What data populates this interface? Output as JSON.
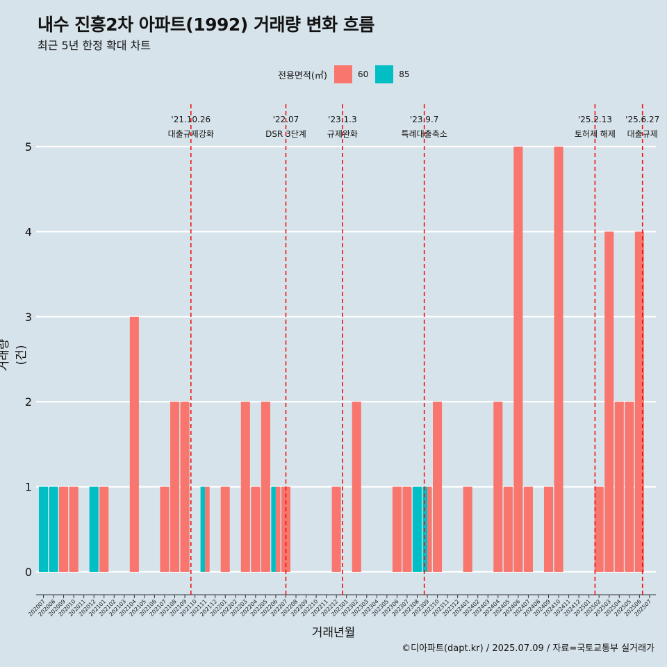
{
  "header": {
    "title": "내수 진흥2차 아파트(1992) 거래량 변화 흐름",
    "subtitle": "최근 5년 한정 확대 차트"
  },
  "legend": {
    "title": "전용면적(㎡)",
    "items": [
      {
        "label": "60",
        "color": "#f8766d"
      },
      {
        "label": "85",
        "color": "#00bfc4"
      }
    ]
  },
  "caption": "©디아파트(dapt.kr) / 2025.07.09 / 자료=국토교통부 실거래가",
  "chart_data": {
    "type": "bar",
    "stacked": false,
    "dodge": true,
    "xlabel": "거래년월",
    "ylabel": "거래량(건)",
    "ylim": [
      0,
      5
    ],
    "yticks": [
      0,
      1,
      2,
      3,
      4,
      5
    ],
    "grid": true,
    "legend_position": "top",
    "categories": [
      "202007",
      "202008",
      "202009",
      "202010",
      "202011",
      "202012",
      "202101",
      "202102",
      "202103",
      "202104",
      "202105",
      "202106",
      "202107",
      "202108",
      "202109",
      "202110",
      "202111",
      "202112",
      "202201",
      "202202",
      "202203",
      "202204",
      "202205",
      "202206",
      "202207",
      "202208",
      "202209",
      "202210",
      "202211",
      "202212",
      "202301",
      "202302",
      "202303",
      "202304",
      "202305",
      "202306",
      "202307",
      "202308",
      "202309",
      "202310",
      "202311",
      "202312",
      "202401",
      "202402",
      "202403",
      "202404",
      "202405",
      "202406",
      "202407",
      "202408",
      "202409",
      "202410",
      "202411",
      "202412",
      "202501",
      "202502",
      "202503",
      "202504",
      "202505",
      "202506",
      "202507"
    ],
    "series": [
      {
        "name": "60",
        "color": "#f8766d",
        "values": [
          0,
          0,
          1,
          1,
          0,
          0,
          1,
          0,
          0,
          3,
          0,
          0,
          1,
          2,
          2,
          0,
          1,
          0,
          1,
          0,
          2,
          1,
          2,
          1,
          1,
          0,
          0,
          0,
          0,
          1,
          0,
          2,
          0,
          0,
          0,
          1,
          1,
          0,
          1,
          2,
          0,
          0,
          1,
          0,
          0,
          2,
          1,
          5,
          1,
          0,
          1,
          5,
          0,
          0,
          0,
          1,
          4,
          2,
          2,
          4,
          0
        ]
      },
      {
        "name": "85",
        "color": "#00bfc4",
        "values": [
          1,
          1,
          0,
          0,
          0,
          1,
          0,
          0,
          0,
          0,
          0,
          0,
          0,
          0,
          0,
          0,
          1,
          0,
          0,
          0,
          0,
          0,
          0,
          1,
          0,
          0,
          0,
          0,
          0,
          0,
          0,
          0,
          0,
          0,
          0,
          0,
          0,
          1,
          1,
          0,
          0,
          0,
          0,
          0,
          0,
          0,
          0,
          0,
          0,
          0,
          0,
          0,
          0,
          0,
          0,
          0,
          0,
          0,
          0,
          0,
          0
        ]
      }
    ],
    "events": [
      {
        "date": "'21.10.26",
        "label": "대출규제강화",
        "at": "202110",
        "offset": -0.4
      },
      {
        "date": "'22.07",
        "label": "DSR 3단계",
        "at": "202207",
        "offset": 0
      },
      {
        "date": "'23.1.3",
        "label": "규제완화",
        "at": "202301",
        "offset": -0.4
      },
      {
        "date": "'23.9.7",
        "label": "특례대출축소",
        "at": "202309",
        "offset": -0.3
      },
      {
        "date": "'25.2.13",
        "label": "토허제 해제",
        "at": "202502",
        "offset": -0.4
      },
      {
        "date": "'25.6.27",
        "label": "대출규제",
        "at": "202506",
        "offset": 0.3
      }
    ]
  }
}
